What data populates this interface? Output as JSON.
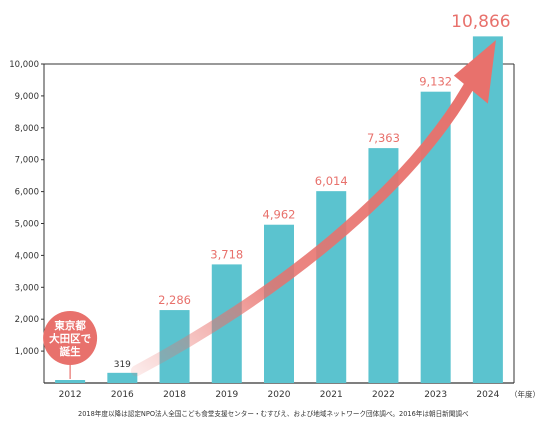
{
  "chart_data": {
    "type": "bar",
    "categories": [
      "2012",
      "2016",
      "2018",
      "2019",
      "2020",
      "2021",
      "2022",
      "2023",
      "2024"
    ],
    "values": [
      1,
      319,
      2286,
      3718,
      4962,
      6014,
      7363,
      9132,
      10866
    ],
    "data_labels": [
      "",
      "319",
      "2,286",
      "3,718",
      "4,962",
      "6,014",
      "7,363",
      "9,132",
      "10,866"
    ],
    "ylim": [
      0,
      10000
    ],
    "yticks": [
      "1,000",
      "2,000",
      "3,000",
      "4,000",
      "5,000",
      "6,000",
      "7,000",
      "8,000",
      "9,000",
      "10,000"
    ],
    "ytick_values": [
      1000,
      2000,
      3000,
      4000,
      5000,
      6000,
      7000,
      8000,
      9000,
      10000
    ],
    "x_unit": "（年度）",
    "grid": false,
    "annotation": {
      "badge_lines": [
        "東京都",
        "大田区で",
        "誕生"
      ],
      "badge_category": "2012"
    },
    "trend_arrow": true,
    "footnote": "2018年度以降は認定NPO法人全国こども食堂支援センター・むすびえ、および地域ネットワーク団体調べ。2016年は朝日新聞調べ",
    "colors": {
      "bar": "#5bc3cf",
      "label": "#e8716c",
      "arrow": "#e8716c",
      "badge": "#e8716c",
      "axis": "#333333"
    }
  }
}
